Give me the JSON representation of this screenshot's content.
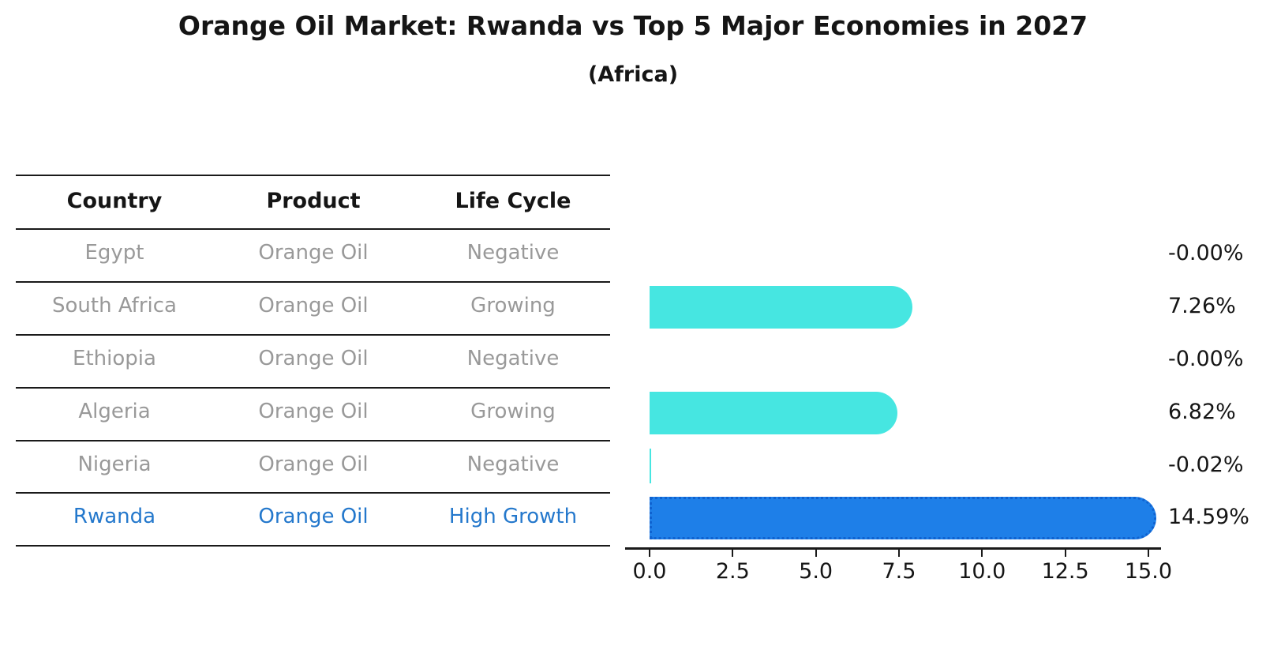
{
  "title": "Orange Oil Market: Rwanda vs Top 5 Major Economies in 2027",
  "subtitle": "(Africa)",
  "table": {
    "headers": [
      "Country",
      "Product",
      "Life Cycle"
    ],
    "rows": [
      {
        "country": "Egypt",
        "product": "Orange Oil",
        "life_cycle": "Negative",
        "highlight": false
      },
      {
        "country": "South Africa",
        "product": "Orange Oil",
        "life_cycle": "Growing",
        "highlight": false
      },
      {
        "country": "Ethiopia",
        "product": "Orange Oil",
        "life_cycle": "Negative",
        "highlight": false
      },
      {
        "country": "Algeria",
        "product": "Orange Oil",
        "life_cycle": "Growing",
        "highlight": false
      },
      {
        "country": "Nigeria",
        "product": "Orange Oil",
        "life_cycle": "Negative",
        "highlight": false
      },
      {
        "country": "Rwanda",
        "product": "Orange Oil",
        "life_cycle": "High Growth",
        "highlight": true
      }
    ]
  },
  "chart_data": {
    "type": "bar",
    "orientation": "horizontal",
    "title": "Orange Oil Market: Rwanda vs Top 5 Major Economies in 2027",
    "subtitle": "(Africa)",
    "categories": [
      "Egypt",
      "South Africa",
      "Ethiopia",
      "Algeria",
      "Nigeria",
      "Rwanda"
    ],
    "values": [
      -0.0,
      7.26,
      -0.0,
      6.82,
      -0.02,
      14.59
    ],
    "value_labels": [
      "-0.00%",
      "7.26%",
      "-0.00%",
      "6.82%",
      "-0.02%",
      "14.59%"
    ],
    "xlim": [
      0,
      15
    ],
    "x_ticks": [
      "0.0",
      "2.5",
      "5.0",
      "7.5",
      "10.0",
      "12.5",
      "15.0"
    ],
    "grid": false,
    "legend": "none",
    "bar_color": "#46E6E1",
    "highlight_color": "#1E7FE8",
    "highlight_border_color": "#0f62d0",
    "highlight_index": 5,
    "table_text_color": "#999999",
    "highlight_text_color": "#2478cc"
  }
}
